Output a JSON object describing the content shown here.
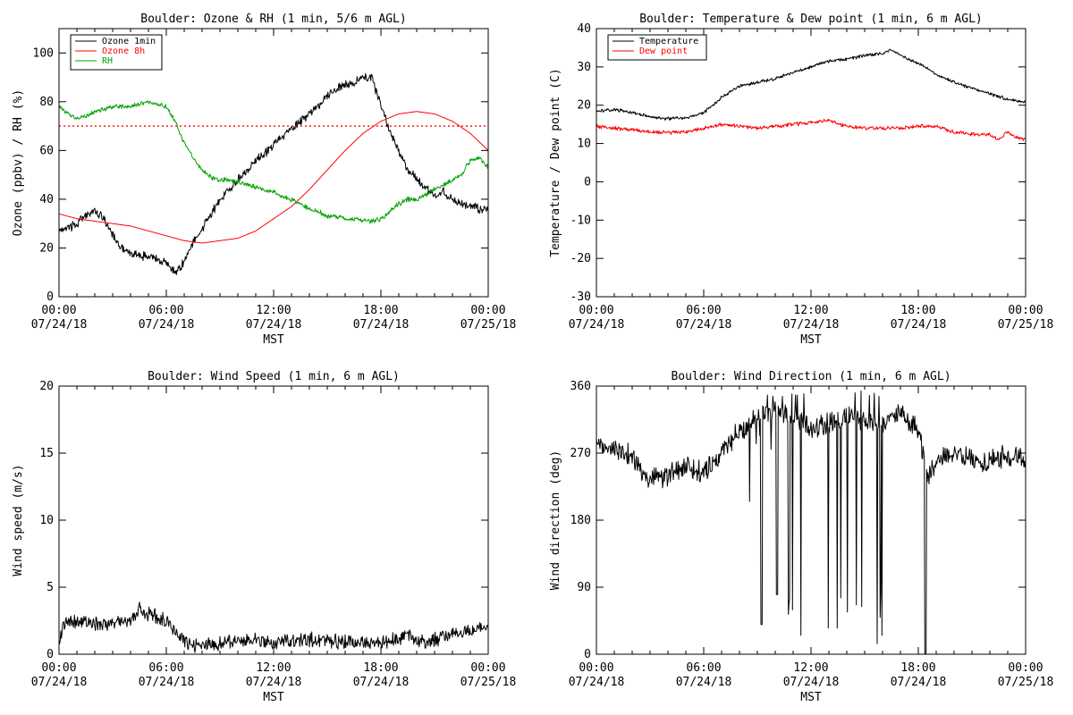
{
  "chart_data": [
    {
      "type": "line",
      "title": "Boulder: Ozone & RH (1 min, 5/6 m AGL)",
      "xlabel": "MST",
      "ylabel": "Ozone (ppbv) / RH (%)",
      "xlim": [
        "07/24/18 00:00",
        "07/25/18 00:00"
      ],
      "ylim": [
        0,
        110
      ],
      "x_ticks": [
        {
          "time": "00:00",
          "date": "07/24/18"
        },
        {
          "time": "06:00",
          "date": "07/24/18"
        },
        {
          "time": "12:00",
          "date": "07/24/18"
        },
        {
          "time": "18:00",
          "date": "07/24/18"
        },
        {
          "time": "00:00",
          "date": "07/25/18"
        }
      ],
      "y_ticks": [
        0,
        20,
        40,
        60,
        80,
        100
      ],
      "legend_position": "top-left",
      "reference_lines": [
        {
          "y": 70,
          "color": "#ff0000",
          "style": "dotted"
        }
      ],
      "series": [
        {
          "name": "Ozone 1min",
          "color": "#000000",
          "noise": 1.5,
          "x": [
            0,
            0.5,
            1,
            1.5,
            2,
            2.5,
            3,
            3.5,
            4,
            4.5,
            5,
            5.5,
            6,
            6.5,
            7,
            7.5,
            8,
            8.5,
            9,
            9.5,
            10,
            10.5,
            11,
            11.5,
            12,
            12.5,
            13,
            13.5,
            14,
            14.5,
            15,
            15.5,
            16,
            16.5,
            17,
            17.5,
            18,
            18.5,
            19,
            19.5,
            20,
            20.5,
            21,
            21.5,
            22,
            22.5,
            23,
            23.5,
            24
          ],
          "y": [
            27,
            28,
            30,
            33,
            35,
            32,
            25,
            20,
            18,
            17,
            16,
            15,
            14,
            10,
            14,
            22,
            28,
            34,
            40,
            44,
            48,
            52,
            56,
            59,
            62,
            66,
            69,
            72,
            75,
            78,
            82,
            85,
            87,
            88,
            90,
            90,
            78,
            68,
            60,
            52,
            48,
            45,
            42,
            43,
            40,
            38,
            37,
            36,
            36
          ]
        },
        {
          "name": "Ozone 8h",
          "color": "#ff0000",
          "noise": 0,
          "x": [
            0,
            1,
            2,
            3,
            4,
            5,
            6,
            7,
            8,
            9,
            10,
            11,
            12,
            13,
            14,
            15,
            16,
            17,
            18,
            19,
            20,
            21,
            22,
            23,
            24
          ],
          "y": [
            34,
            32,
            31,
            30,
            29,
            27,
            25,
            23,
            22,
            23,
            24,
            27,
            32,
            37,
            44,
            52,
            60,
            67,
            72,
            75,
            76,
            75,
            72,
            67,
            60
          ]
        },
        {
          "name": "RH",
          "color": "#00a000",
          "noise": 0.8,
          "x": [
            0,
            0.5,
            1,
            1.5,
            2,
            2.5,
            3,
            3.5,
            4,
            4.5,
            5,
            5.5,
            6,
            6.5,
            7,
            7.5,
            8,
            8.5,
            9,
            9.5,
            10,
            10.5,
            11,
            11.5,
            12,
            12.5,
            13,
            13.5,
            14,
            14.5,
            15,
            15.5,
            16,
            16.5,
            17,
            17.5,
            18,
            18.5,
            19,
            19.5,
            20,
            20.5,
            21,
            21.5,
            22,
            22.5,
            23,
            23.5,
            24
          ],
          "y": [
            78,
            75,
            73,
            74,
            76,
            77,
            78,
            78,
            78,
            79,
            80,
            79,
            78,
            72,
            63,
            57,
            52,
            49,
            48,
            48,
            47,
            46,
            45,
            44,
            43,
            41,
            40,
            38,
            36,
            35,
            33,
            33,
            32,
            32,
            31,
            31,
            32,
            35,
            38,
            40,
            40,
            42,
            44,
            46,
            48,
            50,
            56,
            57,
            53
          ]
        }
      ]
    },
    {
      "type": "line",
      "title": "Boulder: Temperature & Dew point (1 min, 6 m AGL)",
      "xlabel": "MST",
      "ylabel": "Temperature / Dew point (C)",
      "xlim": [
        "07/24/18 00:00",
        "07/25/18 00:00"
      ],
      "ylim": [
        -30,
        40
      ],
      "x_ticks": [
        {
          "time": "00:00",
          "date": "07/24/18"
        },
        {
          "time": "06:00",
          "date": "07/24/18"
        },
        {
          "time": "12:00",
          "date": "07/24/18"
        },
        {
          "time": "18:00",
          "date": "07/24/18"
        },
        {
          "time": "00:00",
          "date": "07/25/18"
        }
      ],
      "y_ticks": [
        -30,
        -20,
        -10,
        0,
        10,
        20,
        30,
        40
      ],
      "legend_position": "top-left",
      "series": [
        {
          "name": "Temperature",
          "color": "#000000",
          "noise": 0.35,
          "x": [
            0,
            1,
            2,
            3,
            4,
            5,
            6,
            7,
            8,
            9,
            10,
            11,
            12,
            13,
            14,
            15,
            16,
            16.5,
            17,
            18,
            19,
            20,
            21,
            22,
            23,
            24
          ],
          "y": [
            18.5,
            18.8,
            18,
            17,
            16.5,
            16.7,
            18,
            22,
            25,
            26,
            27,
            28.5,
            30,
            31.5,
            32,
            33,
            33.5,
            34.5,
            33,
            31,
            28,
            26,
            24.5,
            23,
            21.5,
            21
          ]
        },
        {
          "name": "Dew point",
          "color": "#ff0000",
          "noise": 0.4,
          "x": [
            0,
            1,
            2,
            3,
            4,
            5,
            6,
            7,
            8,
            9,
            10,
            11,
            12,
            13,
            14,
            15,
            16,
            17,
            18,
            19,
            20,
            21,
            22,
            22.5,
            23,
            23.5,
            24
          ],
          "y": [
            14.5,
            14,
            13.5,
            13,
            12.8,
            13,
            14,
            15,
            14.5,
            14,
            14.5,
            15,
            15.5,
            16,
            14.5,
            14,
            14,
            14,
            14.5,
            14.5,
            13,
            12.5,
            12.3,
            11,
            13,
            11.5,
            11
          ]
        }
      ]
    },
    {
      "type": "line",
      "title": "Boulder: Wind Speed (1 min, 6 m AGL)",
      "xlabel": "MST",
      "ylabel": "Wind speed (m/s)",
      "xlim": [
        "07/24/18 00:00",
        "07/25/18 00:00"
      ],
      "ylim": [
        0,
        20
      ],
      "x_ticks": [
        {
          "time": "00:00",
          "date": "07/24/18"
        },
        {
          "time": "06:00",
          "date": "07/24/18"
        },
        {
          "time": "12:00",
          "date": "07/24/18"
        },
        {
          "time": "18:00",
          "date": "07/24/18"
        },
        {
          "time": "00:00",
          "date": "07/25/18"
        }
      ],
      "y_ticks": [
        0,
        5,
        10,
        15,
        20
      ],
      "series": [
        {
          "name": "",
          "color": "#000000",
          "noise": 0.45,
          "x": [
            0,
            0.25,
            1,
            2,
            3,
            4,
            4.5,
            5,
            5.5,
            6,
            6.5,
            7,
            7.5,
            8,
            9,
            10,
            11,
            12,
            13,
            14,
            15,
            16,
            17,
            18,
            19,
            19.5,
            20,
            21,
            22,
            23,
            24
          ],
          "y": [
            0.8,
            2.2,
            2.4,
            2.3,
            2.2,
            2.6,
            3.3,
            3.0,
            2.8,
            2.5,
            1.8,
            1.1,
            0.7,
            0.6,
            0.8,
            0.9,
            1.0,
            0.8,
            1.0,
            1.1,
            1.0,
            0.9,
            0.8,
            0.9,
            1.2,
            1.5,
            0.9,
            1.1,
            1.5,
            1.8,
            2.0
          ]
        }
      ]
    },
    {
      "type": "line",
      "title": "Boulder: Wind Direction (1 min, 6 m AGL)",
      "xlabel": "MST",
      "ylabel": "Wind direction (deg)",
      "xlim": [
        "07/24/18 00:00",
        "07/25/18 00:00"
      ],
      "ylim": [
        0,
        360
      ],
      "x_ticks": [
        {
          "time": "00:00",
          "date": "07/24/18"
        },
        {
          "time": "06:00",
          "date": "07/24/18"
        },
        {
          "time": "12:00",
          "date": "07/24/18"
        },
        {
          "time": "18:00",
          "date": "07/24/18"
        },
        {
          "time": "00:00",
          "date": "07/25/18"
        }
      ],
      "y_ticks": [
        0,
        90,
        180,
        270,
        360
      ],
      "series": [
        {
          "name": "",
          "color": "#000000",
          "noise": 12,
          "x": [
            0,
            1,
            2,
            2.5,
            3,
            4,
            5,
            6,
            6.5,
            7,
            7.5,
            8,
            8.5,
            9,
            10,
            11,
            12,
            13,
            14,
            15,
            16,
            17,
            18,
            18.5,
            19,
            20,
            21,
            22,
            23,
            24
          ],
          "y": [
            280,
            275,
            265,
            245,
            235,
            240,
            250,
            245,
            255,
            270,
            285,
            300,
            310,
            320,
            330,
            320,
            300,
            310,
            320,
            315,
            310,
            325,
            300,
            235,
            260,
            270,
            262,
            258,
            268,
            260
          ]
        }
      ]
    }
  ]
}
